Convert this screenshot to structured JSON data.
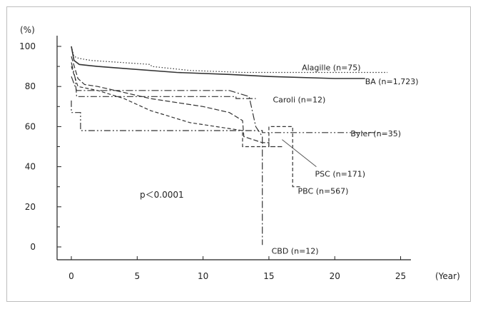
{
  "chart_data": {
    "type": "line",
    "title": "",
    "xlabel": "(Year)",
    "ylabel": "(%)",
    "xlim": [
      0,
      26
    ],
    "ylim": [
      0,
      100
    ],
    "xticks": [
      0,
      5,
      10,
      15,
      20,
      25
    ],
    "yticks": [
      0,
      20,
      40,
      60,
      80,
      100
    ],
    "grid": false,
    "annotation": "p＜0.0001",
    "series": [
      {
        "name": "Alagille (n=75)",
        "dash": "1.5,2.5",
        "points": [
          [
            0,
            100
          ],
          [
            0.2,
            95
          ],
          [
            0.6,
            94
          ],
          [
            1.5,
            93
          ],
          [
            6,
            91
          ],
          [
            6.1,
            90
          ],
          [
            9,
            88
          ],
          [
            13,
            87
          ],
          [
            24,
            87
          ]
        ]
      },
      {
        "name": "BA (n=1,723)",
        "dash": "",
        "points": [
          [
            0,
            100
          ],
          [
            0.2,
            93
          ],
          [
            0.6,
            91
          ],
          [
            2,
            90
          ],
          [
            4,
            89
          ],
          [
            8,
            87
          ],
          [
            12,
            86
          ],
          [
            15,
            85
          ],
          [
            20,
            84
          ],
          [
            22.3,
            84
          ]
        ]
      },
      {
        "name": "Caroli (n=12)",
        "dash": "9,3,2,3",
        "points": [
          [
            0,
            92
          ],
          [
            0.3,
            84
          ],
          [
            0.4,
            75
          ],
          [
            1,
            75
          ],
          [
            5,
            75
          ],
          [
            5.5,
            75
          ],
          [
            12.5,
            75
          ],
          [
            12.5,
            74
          ],
          [
            14,
            74
          ]
        ]
      },
      {
        "name": "Byler (n=35)",
        "dash": "9,3,2,3,2,3",
        "points": [
          [
            0,
            73
          ],
          [
            0,
            67
          ],
          [
            0.7,
            67
          ],
          [
            0.7,
            58
          ],
          [
            12,
            58
          ],
          [
            13,
            58
          ],
          [
            14,
            58
          ],
          [
            14.5,
            58
          ],
          [
            14.5,
            57
          ],
          [
            23.5,
            57
          ]
        ]
      },
      {
        "name": "PSC (n=171)",
        "dash": "7,3",
        "points": [
          [
            0,
            95
          ],
          [
            0.5,
            84
          ],
          [
            1,
            81
          ],
          [
            2,
            80
          ],
          [
            4,
            77
          ],
          [
            6,
            74
          ],
          [
            8,
            72
          ],
          [
            10,
            70
          ],
          [
            12,
            67
          ],
          [
            13,
            63
          ],
          [
            13.1,
            55
          ],
          [
            14.5,
            52
          ],
          [
            15,
            52
          ],
          [
            15,
            50
          ],
          [
            16,
            50
          ]
        ]
      },
      {
        "name": "PBC (n=567)",
        "dash": "5,3",
        "points": [
          [
            0,
            90
          ],
          [
            0.5,
            80
          ],
          [
            2,
            78
          ],
          [
            4,
            74
          ],
          [
            5,
            71
          ],
          [
            6,
            68
          ],
          [
            7,
            66
          ],
          [
            8,
            64
          ],
          [
            9,
            62
          ],
          [
            10,
            61
          ],
          [
            11,
            60
          ],
          [
            13,
            58
          ],
          [
            13,
            50
          ],
          [
            15,
            50
          ],
          [
            15,
            60
          ],
          [
            16.8,
            60
          ],
          [
            16.8,
            30
          ],
          [
            17.5,
            30
          ]
        ]
      },
      {
        "name": "CBD (n=12)",
        "dash": "10,3,2,3",
        "points": [
          [
            0,
            85
          ],
          [
            0.4,
            78
          ],
          [
            1,
            78
          ],
          [
            12,
            78
          ],
          [
            13.5,
            75
          ],
          [
            14,
            60
          ],
          [
            14.5,
            55
          ],
          [
            14.5,
            1
          ]
        ]
      }
    ],
    "labels": [
      {
        "series": 0,
        "at": [
          17.5,
          89.5
        ]
      },
      {
        "series": 1,
        "at": [
          22.3,
          82.5
        ]
      },
      {
        "series": 2,
        "at": [
          15.3,
          73.5
        ]
      },
      {
        "series": 3,
        "at": [
          21.2,
          56.5
        ]
      },
      {
        "series": 4,
        "at": [
          18.5,
          36.5
        ]
      },
      {
        "series": 5,
        "at": [
          17.2,
          28
        ]
      },
      {
        "series": 6,
        "at": [
          15.2,
          -2
        ]
      }
    ],
    "callout": {
      "series": 4,
      "from": [
        16.0,
        53.5
      ],
      "to": [
        18.6,
        40
      ]
    },
    "annotation_at": [
      5.2,
      26
    ]
  }
}
